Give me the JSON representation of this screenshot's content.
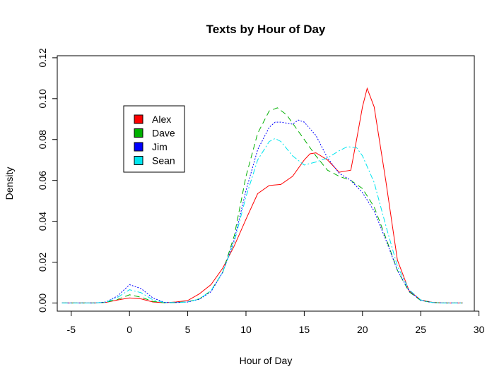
{
  "chart_data": {
    "type": "line",
    "title": "Texts by Hour of Day",
    "xlabel": "Hour of Day",
    "ylabel": "Density",
    "xlim": [
      -6.2,
      29.6
    ],
    "ylim": [
      -0.004,
      0.121
    ],
    "xticks": [
      -5,
      0,
      5,
      10,
      15,
      20,
      25,
      30
    ],
    "yticks": [
      0.0,
      0.02,
      0.04,
      0.06,
      0.08,
      0.1,
      0.12
    ],
    "ytick_labels": [
      "0.00",
      "0.02",
      "0.04",
      "0.06",
      "0.08",
      "0.10",
      "0.12"
    ],
    "grid": false,
    "legend_position": "top-left",
    "series": [
      {
        "name": "Alex",
        "color": "#FF0000",
        "dash": "solid",
        "x": [
          -5.8,
          -3,
          -2,
          -1,
          0,
          1,
          2,
          3,
          4,
          5,
          6,
          7,
          8,
          9,
          10,
          11,
          12,
          13,
          14,
          15,
          15.5,
          16,
          17,
          18,
          19,
          19.5,
          20,
          20.4,
          21,
          22,
          23,
          24,
          25,
          26,
          27,
          28.6
        ],
        "y": [
          0,
          0,
          0.0003,
          0.0015,
          0.0025,
          0.002,
          0.0005,
          0.0001,
          0.0005,
          0.0012,
          0.0045,
          0.009,
          0.017,
          0.028,
          0.041,
          0.0535,
          0.0575,
          0.058,
          0.062,
          0.07,
          0.073,
          0.0735,
          0.07,
          0.064,
          0.065,
          0.08,
          0.096,
          0.105,
          0.096,
          0.06,
          0.021,
          0.006,
          0.0015,
          0.0003,
          0,
          0
        ]
      },
      {
        "name": "Dave",
        "color": "#00B000",
        "dash": "8,5",
        "x": [
          -5.8,
          -3,
          -2,
          -1,
          0,
          1,
          2,
          3,
          4,
          5,
          6,
          7,
          8,
          9,
          10,
          11,
          12,
          12.7,
          13.5,
          14,
          15,
          16,
          17,
          18,
          19,
          20,
          21,
          22,
          23,
          24,
          25,
          26,
          27,
          28.6
        ],
        "y": [
          0,
          0,
          0.0003,
          0.0018,
          0.004,
          0.0028,
          0.0008,
          0.0001,
          0.0002,
          0.0006,
          0.002,
          0.006,
          0.015,
          0.033,
          0.062,
          0.083,
          0.094,
          0.0955,
          0.092,
          0.088,
          0.08,
          0.072,
          0.065,
          0.062,
          0.06,
          0.056,
          0.047,
          0.032,
          0.016,
          0.0055,
          0.0012,
          0.0002,
          0,
          0
        ]
      },
      {
        "name": "Jim",
        "color": "#0000FF",
        "dash": "2,2",
        "x": [
          -5.8,
          -3,
          -2,
          -1,
          0,
          1,
          2,
          3,
          4,
          5,
          6,
          7,
          8,
          9,
          10,
          11,
          12,
          12.5,
          13,
          14,
          14.5,
          15,
          16,
          17,
          18,
          19,
          20,
          21,
          22,
          23,
          24,
          25,
          26,
          27,
          28.6
        ],
        "y": [
          0,
          0,
          0.0005,
          0.0035,
          0.009,
          0.007,
          0.0025,
          0.0003,
          0.0002,
          0.0005,
          0.0018,
          0.0055,
          0.015,
          0.031,
          0.055,
          0.075,
          0.086,
          0.0885,
          0.0885,
          0.0875,
          0.0895,
          0.0885,
          0.082,
          0.071,
          0.0635,
          0.06,
          0.054,
          0.045,
          0.031,
          0.016,
          0.0058,
          0.0013,
          0.0002,
          0,
          0
        ]
      },
      {
        "name": "Sean",
        "color": "#00E5EE",
        "dash": "8,3,2,3",
        "x": [
          -5.8,
          -3,
          -2,
          -1,
          0,
          1,
          2,
          3,
          4,
          5,
          6,
          7,
          8,
          9,
          10,
          11,
          12,
          12.5,
          13,
          14,
          15,
          16,
          17,
          18,
          18.7,
          19.5,
          20,
          21,
          22,
          23,
          24,
          25,
          26,
          27,
          28.6
        ],
        "y": [
          0,
          0,
          0.0004,
          0.0028,
          0.0065,
          0.005,
          0.0016,
          0.0002,
          0.0002,
          0.0005,
          0.002,
          0.006,
          0.015,
          0.03,
          0.052,
          0.07,
          0.079,
          0.0805,
          0.079,
          0.072,
          0.0675,
          0.069,
          0.071,
          0.0745,
          0.0765,
          0.076,
          0.072,
          0.059,
          0.038,
          0.018,
          0.0065,
          0.0015,
          0.0002,
          0,
          0
        ]
      }
    ]
  }
}
